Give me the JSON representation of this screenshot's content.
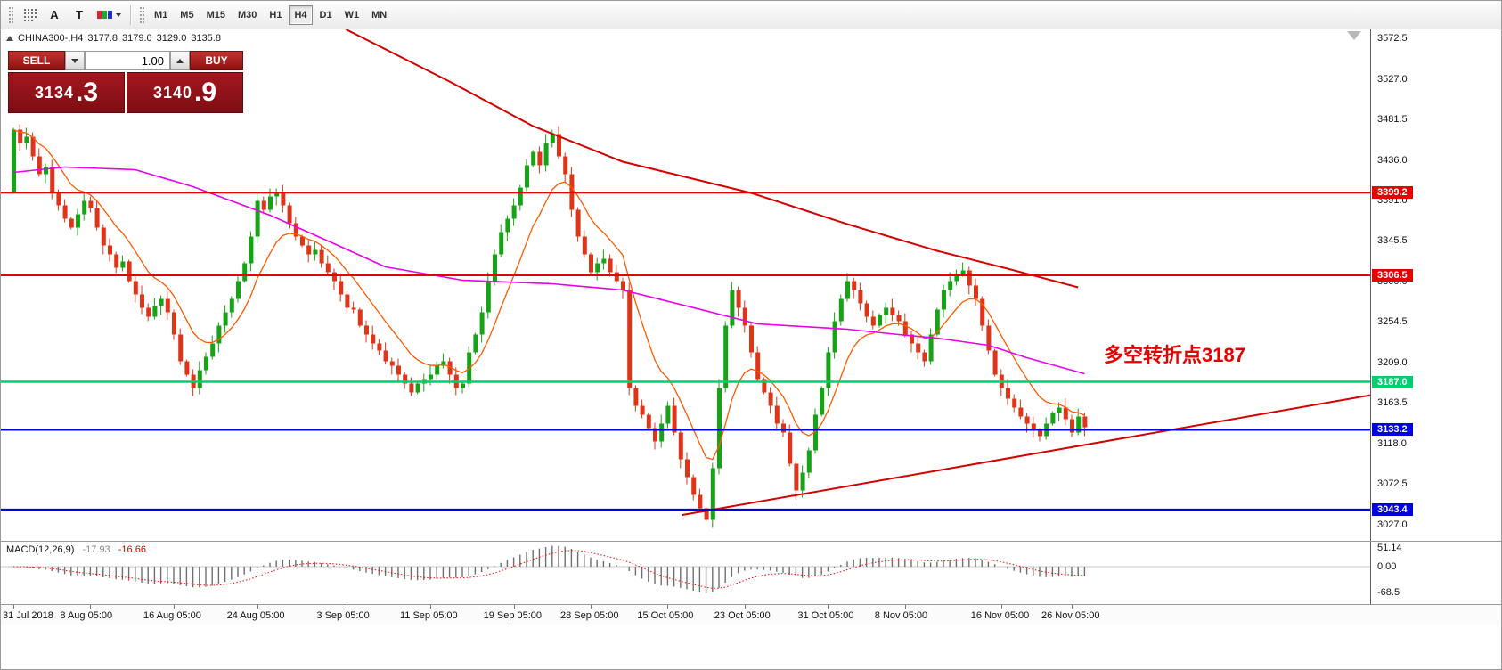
{
  "toolbar": {
    "tools": [
      {
        "id": "grid",
        "label": ""
      },
      {
        "id": "label-a",
        "label": "A"
      },
      {
        "id": "text-t",
        "label": "T"
      },
      {
        "id": "colors",
        "label": ""
      }
    ],
    "timeframes": [
      {
        "label": "M1",
        "active": false
      },
      {
        "label": "M5",
        "active": false
      },
      {
        "label": "M15",
        "active": false
      },
      {
        "label": "M30",
        "active": false
      },
      {
        "label": "H1",
        "active": false
      },
      {
        "label": "H4",
        "active": true
      },
      {
        "label": "D1",
        "active": false
      },
      {
        "label": "W1",
        "active": false
      },
      {
        "label": "MN",
        "active": false
      }
    ]
  },
  "header": {
    "symbol": "CHINA300-,H4",
    "open": "3177.8",
    "high": "3179.0",
    "low": "3129.0",
    "close": "3135.8"
  },
  "trade_panel": {
    "sell_label": "SELL",
    "buy_label": "BUY",
    "volume": "1.00",
    "bid_main": "3134",
    "bid_pip": ".3",
    "ask_main": "3140",
    "ask_pip": ".9"
  },
  "annotation": {
    "text": "多空转折点3187",
    "color": "#e60000"
  },
  "price_axis": {
    "ticks": [
      "3572.5",
      "3527.0",
      "3481.5",
      "3436.0",
      "3391.0",
      "3345.5",
      "3300.0",
      "3254.5",
      "3209.0",
      "3163.5",
      "3118.0",
      "3072.5",
      "3027.0"
    ]
  },
  "levels": [
    {
      "label": "3399.2",
      "price": 3399.2,
      "color": "#e60000",
      "width": 2
    },
    {
      "label": "3306.5",
      "price": 3306.5,
      "color": "#e60000",
      "width": 2
    },
    {
      "label": "3187.0",
      "price": 3187.0,
      "color": "#00cf6f",
      "width": 2.5
    },
    {
      "label": "3133.2",
      "price": 3133.2,
      "color": "#0000e0",
      "width": 2.5
    },
    {
      "label": "3043.4",
      "price": 3043.4,
      "color": "#0000e0",
      "width": 2.5
    }
  ],
  "macd": {
    "name": "MACD(12,26,9)",
    "value": "-17.93",
    "signal": "-16.66",
    "scale": [
      "51.14",
      "0.00",
      "-68.5"
    ]
  },
  "time_axis": {
    "labels": [
      {
        "text": "31 Jul 2018",
        "i": 0
      },
      {
        "text": "8 Aug 05:00",
        "i": 12
      },
      {
        "text": "16 Aug 05:00",
        "i": 25
      },
      {
        "text": "24 Aug 05:00",
        "i": 38
      },
      {
        "text": "3 Sep 05:00",
        "i": 52
      },
      {
        "text": "11 Sep 05:00",
        "i": 65
      },
      {
        "text": "19 Sep 05:00",
        "i": 78
      },
      {
        "text": "28 Sep 05:00",
        "i": 90
      },
      {
        "text": "15 Oct 05:00",
        "i": 102
      },
      {
        "text": "23 Oct 05:00",
        "i": 114
      },
      {
        "text": "31 Oct 05:00",
        "i": 127
      },
      {
        "text": "8 Nov 05:00",
        "i": 139
      },
      {
        "text": "16 Nov 05:00",
        "i": 154
      },
      {
        "text": "26 Nov 05:00",
        "i": 165
      }
    ]
  },
  "chart_data": {
    "type": "candlestick",
    "symbol": "CHINA300-",
    "timeframe": "H4",
    "ohlc_header": {
      "open": 3177.8,
      "high": 3179.0,
      "low": 3129.0,
      "close": 3135.8
    },
    "y_range": [
      3027.0,
      3572.5
    ],
    "open_first": 3400,
    "closes": [
      3470,
      3455,
      3462,
      3440,
      3420,
      3428,
      3400,
      3385,
      3370,
      3360,
      3375,
      3390,
      3382,
      3360,
      3340,
      3330,
      3315,
      3322,
      3300,
      3285,
      3270,
      3260,
      3272,
      3280,
      3265,
      3240,
      3210,
      3195,
      3180,
      3200,
      3215,
      3230,
      3250,
      3265,
      3280,
      3300,
      3320,
      3350,
      3390,
      3380,
      3395,
      3400,
      3385,
      3365,
      3350,
      3340,
      3330,
      3335,
      3320,
      3310,
      3300,
      3285,
      3270,
      3268,
      3250,
      3240,
      3230,
      3222,
      3210,
      3205,
      3195,
      3185,
      3175,
      3185,
      3190,
      3195,
      3205,
      3210,
      3195,
      3180,
      3185,
      3220,
      3240,
      3265,
      3300,
      3330,
      3355,
      3370,
      3385,
      3405,
      3430,
      3445,
      3430,
      3455,
      3465,
      3440,
      3420,
      3380,
      3350,
      3330,
      3310,
      3320,
      3325,
      3310,
      3300,
      3290,
      3180,
      3160,
      3150,
      3135,
      3120,
      3140,
      3160,
      3130,
      3100,
      3080,
      3060,
      3045,
      3032,
      3090,
      3180,
      3250,
      3290,
      3270,
      3250,
      3220,
      3190,
      3175,
      3160,
      3140,
      3130,
      3095,
      3065,
      3085,
      3110,
      3150,
      3180,
      3220,
      3255,
      3280,
      3300,
      3290,
      3275,
      3260,
      3250,
      3262,
      3270,
      3262,
      3255,
      3240,
      3230,
      3220,
      3210,
      3240,
      3268,
      3290,
      3300,
      3308,
      3312,
      3295,
      3280,
      3250,
      3222,
      3195,
      3180,
      3168,
      3158,
      3148,
      3140,
      3132,
      3126,
      3140,
      3152,
      3158,
      3145,
      3130,
      3148,
      3136
    ],
    "ma_magenta_points": [
      [
        0,
        3422
      ],
      [
        8,
        3428
      ],
      [
        19,
        3425
      ],
      [
        28,
        3406
      ],
      [
        40,
        3374
      ],
      [
        50,
        3342
      ],
      [
        58,
        3316
      ],
      [
        70,
        3301
      ],
      [
        84,
        3297
      ],
      [
        95,
        3290
      ],
      [
        105,
        3272
      ],
      [
        116,
        3252
      ],
      [
        130,
        3246
      ],
      [
        138,
        3240
      ],
      [
        144,
        3236
      ],
      [
        152,
        3228
      ],
      [
        158,
        3214
      ],
      [
        167,
        3196
      ]
    ],
    "ma_red_points": [
      [
        48,
        3610
      ],
      [
        52,
        3582
      ],
      [
        68,
        3524
      ],
      [
        81,
        3474
      ],
      [
        95,
        3434
      ],
      [
        115,
        3399
      ],
      [
        130,
        3364
      ],
      [
        144,
        3334
      ],
      [
        155,
        3314
      ],
      [
        166,
        3293
      ]
    ],
    "trendline_up": {
      "i1": 104.3,
      "p1": 3037.5,
      "i2": 212,
      "p2": 3172.5
    },
    "colors": {
      "up": "#16a316",
      "down": "#e03418",
      "ma_fast": "#ff5a00",
      "ma_mid": "#e800e8",
      "ma_slow": "#d40000",
      "trend": "#d40000",
      "hist": "#6f6f6f",
      "signal": "#ff0000"
    }
  }
}
